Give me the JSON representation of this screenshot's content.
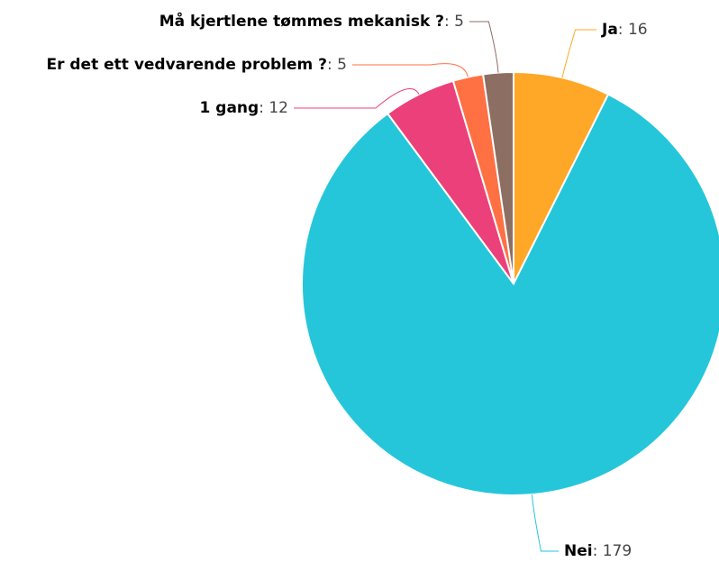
{
  "chart_data": {
    "type": "pie",
    "categories": [
      "Ja",
      "Nei",
      "1 gang",
      "Er det ett vedvarende problem ?",
      "Må kjertlene tømmes mekanisk ?"
    ],
    "values": [
      16,
      179,
      12,
      5,
      5
    ],
    "colors": [
      "#FFA726",
      "#26C6DA",
      "#EC407A",
      "#FF7043",
      "#8D6E63"
    ]
  }
}
